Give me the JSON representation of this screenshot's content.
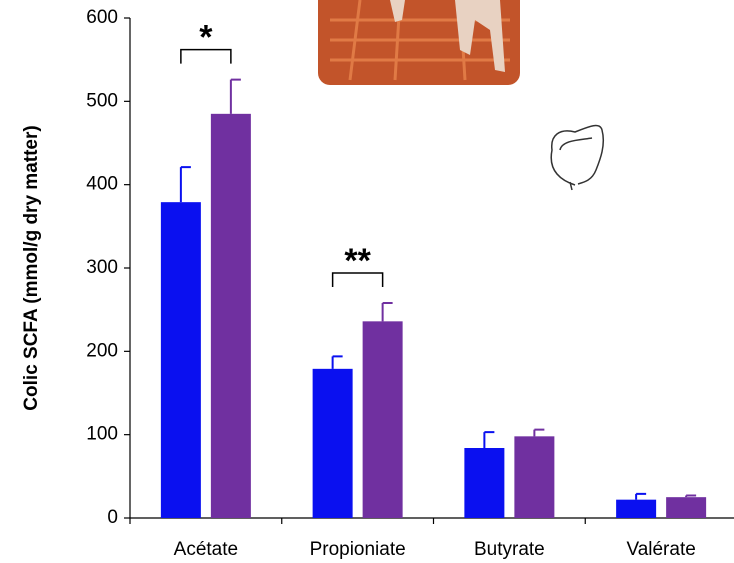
{
  "chart_data": {
    "type": "bar",
    "ylabel": "Colic SCFA (mmol/g dry matter)",
    "categories": [
      "Acétate",
      "Propioniate",
      "Butyrate",
      "Valérate"
    ],
    "series": [
      {
        "color": "#0a10f0",
        "values": [
          379,
          179,
          84,
          22
        ],
        "errors": [
          42,
          15,
          19,
          7
        ]
      },
      {
        "color": "#7030a0",
        "values": [
          485,
          236,
          98,
          25
        ],
        "errors": [
          41,
          22,
          8,
          2
        ]
      }
    ],
    "ylim": [
      0,
      600
    ],
    "yticks": [
      0,
      100,
      200,
      300,
      400,
      500,
      600
    ],
    "annotations": [
      "*",
      "**"
    ]
  }
}
